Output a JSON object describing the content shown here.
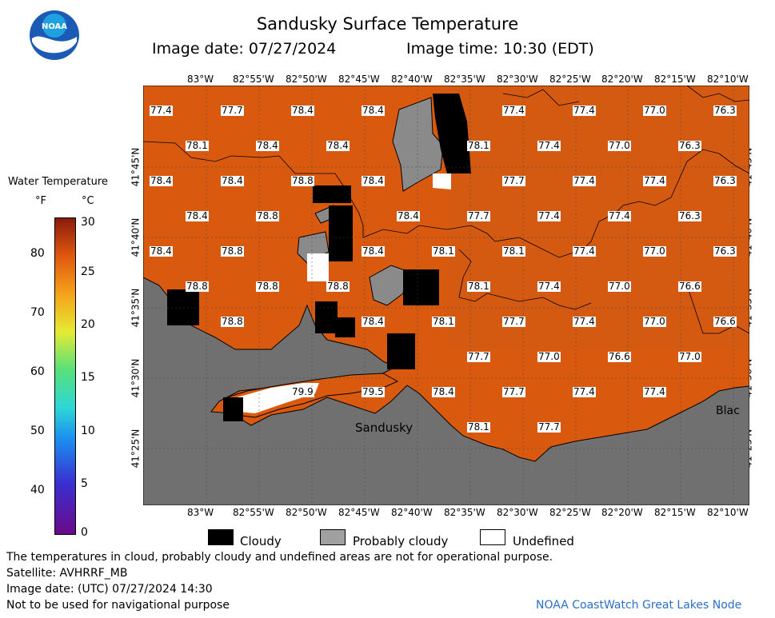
{
  "header": {
    "title": "Sandusky Surface Temperature",
    "image_date": "Image date: 07/27/2024",
    "image_time": "Image time: 10:30 (EDT)"
  },
  "colorbar": {
    "title": "Water Temperature",
    "unit_f": "°F",
    "unit_c": "°C",
    "f_ticks": [
      "80",
      "70",
      "60",
      "50",
      "40"
    ],
    "c_ticks": [
      "30",
      "25",
      "20",
      "15",
      "10",
      "5",
      "0"
    ]
  },
  "axes": {
    "lon_labels": [
      "83°W",
      "82°55'W",
      "82°50'W",
      "82°45'W",
      "82°40'W",
      "82°35'W",
      "82°30'W",
      "82°25'W",
      "82°20'W",
      "82°15'W",
      "82°10'W"
    ],
    "lat_labels": [
      "41°45'N",
      "41°40'N",
      "41°35'N",
      "41°30'N",
      "41°25'N"
    ]
  },
  "map": {
    "place_sandusky": "Sandusky",
    "place_black": "Blac",
    "colors": {
      "water": "#d9590f",
      "land": "#707070",
      "cloudy": "#000000",
      "probably_cloudy": "#8a8a8a",
      "undefined": "#ffffff"
    },
    "temperature_labels": [
      {
        "t": "77.4"
      },
      {
        "t": "77.7"
      },
      {
        "t": "78.4"
      },
      {
        "t": "78.4"
      },
      {
        "t": "77.4"
      },
      {
        "t": "77.4"
      },
      {
        "t": "77.0"
      },
      {
        "t": "76.3"
      },
      {
        "t": "78.1"
      },
      {
        "t": "78.4"
      },
      {
        "t": "78.4"
      },
      {
        "t": "78.1"
      },
      {
        "t": "77.4"
      },
      {
        "t": "77.0"
      },
      {
        "t": "76.3"
      },
      {
        "t": "78.4"
      },
      {
        "t": "78.4"
      },
      {
        "t": "78.8"
      },
      {
        "t": "78.4"
      },
      {
        "t": "77.7"
      },
      {
        "t": "77.4"
      },
      {
        "t": "77.4"
      },
      {
        "t": "76.3"
      },
      {
        "t": "78.4"
      },
      {
        "t": "78.8"
      },
      {
        "t": "78.4"
      },
      {
        "t": "77.7"
      },
      {
        "t": "77.4"
      },
      {
        "t": "77.4"
      },
      {
        "t": "76.3"
      },
      {
        "t": "78.4"
      },
      {
        "t": "78.8"
      },
      {
        "t": "78.4"
      },
      {
        "t": "78.1"
      },
      {
        "t": "78.1"
      },
      {
        "t": "77.4"
      },
      {
        "t": "77.0"
      },
      {
        "t": "76.3"
      },
      {
        "t": "78.8"
      },
      {
        "t": "78.8"
      },
      {
        "t": "78.8"
      },
      {
        "t": "78.1"
      },
      {
        "t": "77.4"
      },
      {
        "t": "77.0"
      },
      {
        "t": "76.6"
      },
      {
        "t": "78.8"
      },
      {
        "t": "78.4"
      },
      {
        "t": "78.1"
      },
      {
        "t": "77.7"
      },
      {
        "t": "77.4"
      },
      {
        "t": "77.0"
      },
      {
        "t": "76.6"
      },
      {
        "t": "77.7"
      },
      {
        "t": "77.0"
      },
      {
        "t": "76.6"
      },
      {
        "t": "77.0"
      },
      {
        "t": "79.9"
      },
      {
        "t": "79.5"
      },
      {
        "t": "78.4"
      },
      {
        "t": "77.7"
      },
      {
        "t": "77.4"
      },
      {
        "t": "77.4"
      },
      {
        "t": "78.1"
      },
      {
        "t": "77.7"
      }
    ]
  },
  "legend": {
    "cloudy": "Cloudy",
    "probably_cloudy": "Probably cloudy",
    "undefined": "Undefined"
  },
  "footer": {
    "note": "The temperatures in cloud, probably cloudy and undefined areas are not for operational purpose.",
    "satellite": "Satellite: AVHRRF_MB",
    "utc_date": "Image date: (UTC) 07/27/2024  14:30",
    "nav_warning": "Not to be used for navigational purpose",
    "credit": "NOAA CoastWatch Great Lakes Node"
  }
}
